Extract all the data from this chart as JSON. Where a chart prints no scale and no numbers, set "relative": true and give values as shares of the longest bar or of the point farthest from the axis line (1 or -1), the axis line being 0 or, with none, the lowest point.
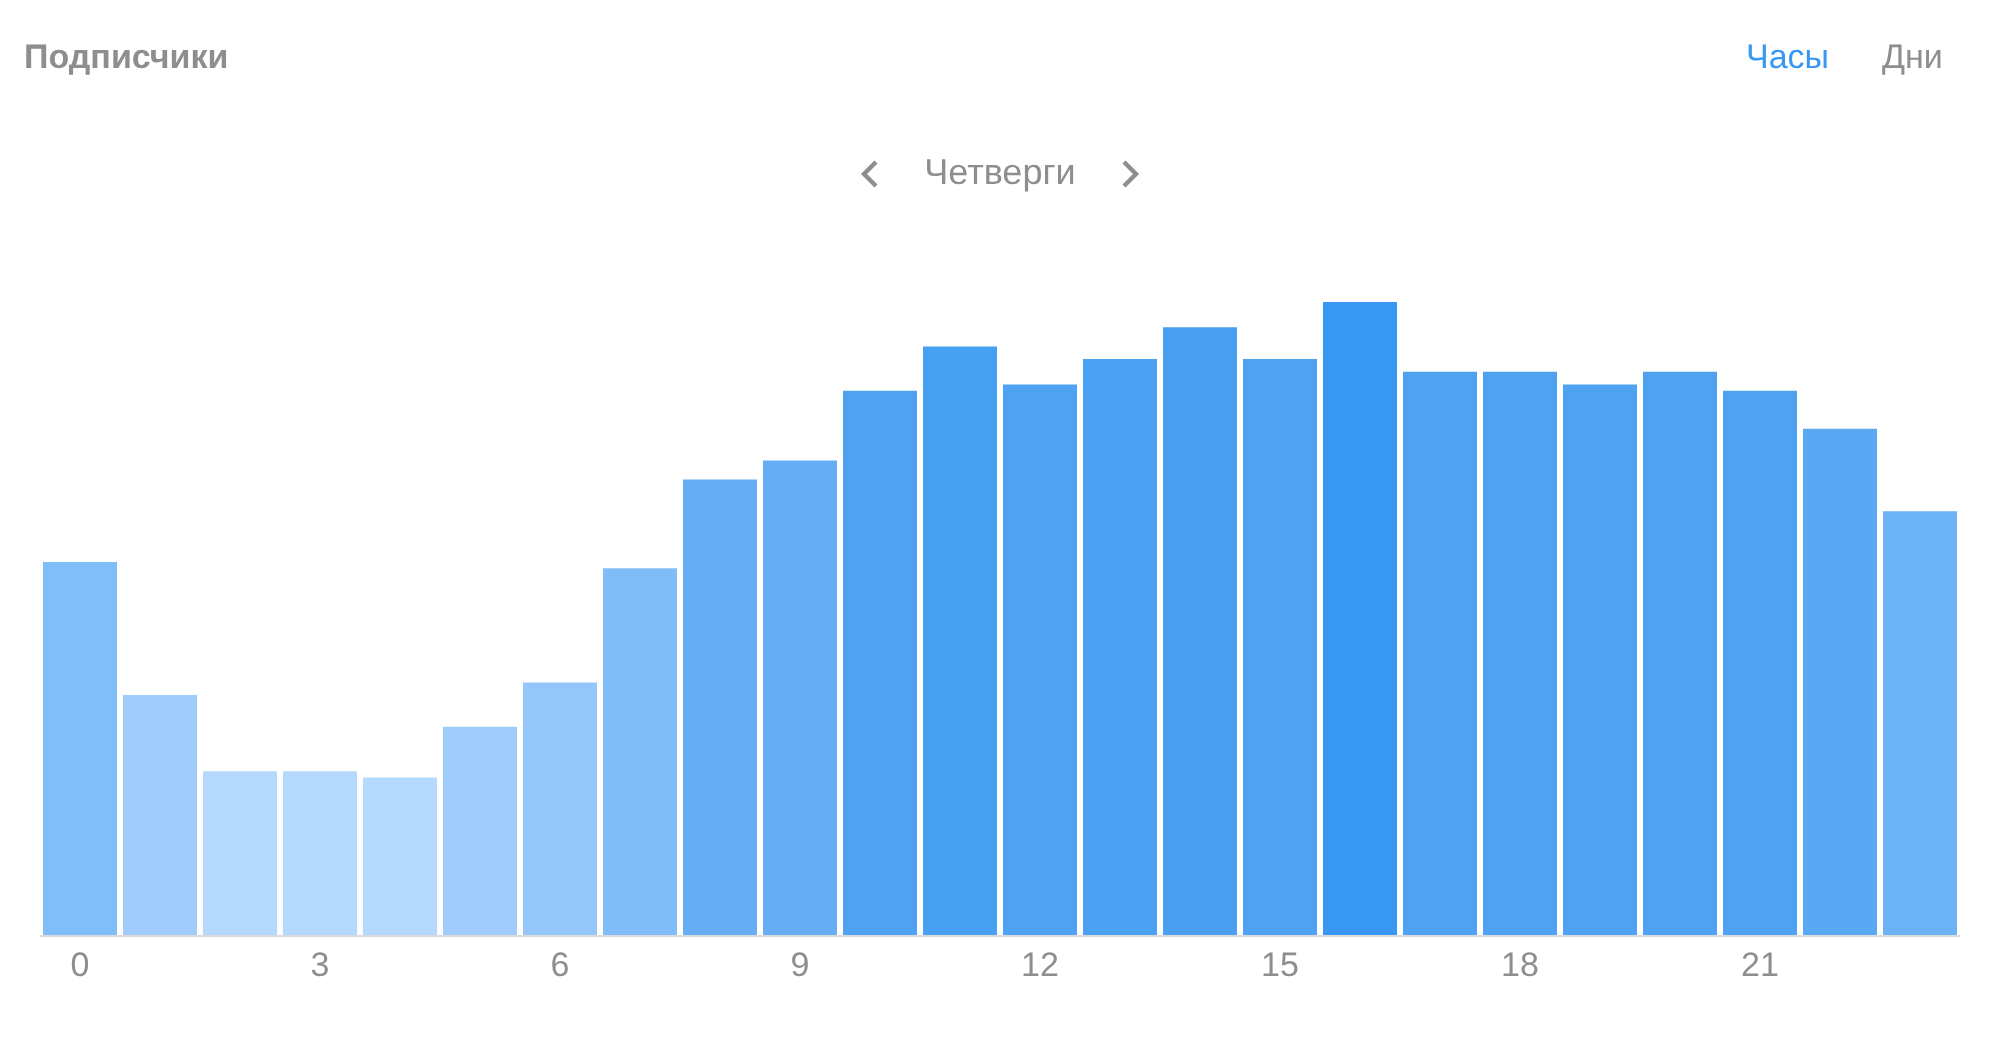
{
  "chart_data": {
    "type": "bar",
    "title": "Подписчики",
    "subtitle": "Четверги",
    "annotations": [
      "Часы",
      "Дни"
    ],
    "relative": true,
    "categories": [
      "0",
      null,
      null,
      "3",
      null,
      null,
      "6",
      null,
      null,
      "9",
      null,
      null,
      "12",
      null,
      null,
      "15",
      null,
      null,
      "18",
      null,
      null,
      "21",
      null,
      null
    ],
    "values": [
      0.59,
      0.38,
      0.26,
      0.26,
      0.25,
      0.33,
      0.4,
      0.58,
      0.72,
      0.75,
      0.86,
      0.93,
      0.87,
      0.91,
      0.96,
      0.91,
      1,
      0.89,
      0.89,
      0.87,
      0.89,
      0.86,
      0.8,
      0.67
    ],
    "colors": [
      "#80bef9",
      "#9fccfa",
      "#b5d9fd",
      "#b5d9fd",
      "#b5d9fd",
      "#9fccfa",
      "#94c6fa",
      "#80bdf8",
      "#65aef5",
      "#65aef5",
      "#4fa2f2",
      "#47a0f1",
      "#4fa2f2",
      "#4aa0f1",
      "#4a9ff0",
      "#4fa2f2",
      "#3897f0",
      "#4fa2f2",
      "#4fa2f2",
      "#4fa2f2",
      "#4fa2f2",
      "#4fa2f2",
      "#5aa8f3",
      "#6cb2f6"
    ],
    "grid": false,
    "legend": false
  }
}
